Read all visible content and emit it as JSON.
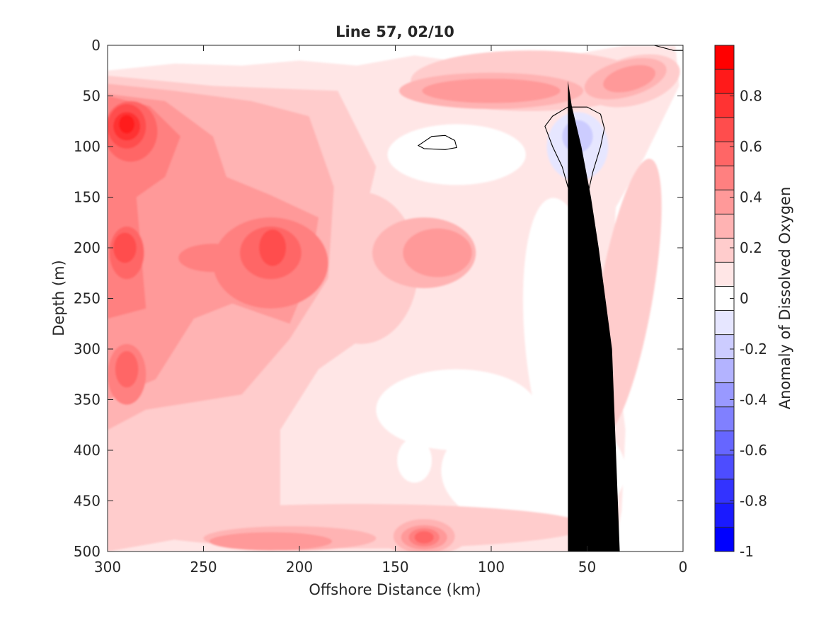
{
  "chart_data": {
    "type": "heatmap",
    "title": "Line 57, 02/10",
    "xlabel": "Offshore Distance (km)",
    "ylabel": "Depth (m)",
    "colorbar_label": "Anomaly of Dissolved Oxygen",
    "xlim": [
      300,
      0
    ],
    "ylim": [
      500,
      0
    ],
    "x_reversed": true,
    "y_reversed": true,
    "x_ticks": [
      300,
      250,
      200,
      150,
      100,
      50,
      0
    ],
    "y_ticks": [
      0,
      50,
      100,
      150,
      200,
      250,
      300,
      350,
      400,
      450,
      500
    ],
    "colorbar": {
      "range": [
        -1,
        1
      ],
      "step": 0.1,
      "ticks": [
        -1,
        -0.8,
        -0.6,
        -0.4,
        -0.2,
        0,
        0.2,
        0.4,
        0.6,
        0.8
      ],
      "tick_labels": [
        "-1",
        "-0.8",
        "-0.6",
        "-0.4",
        "-0.2",
        "0",
        "0.2",
        "0.4",
        "0.6",
        "0.8"
      ],
      "colors": [
        "#0000ff",
        "#1a1aff",
        "#3333ff",
        "#4d4dff",
        "#6666ff",
        "#8080ff",
        "#9999ff",
        "#b3b3ff",
        "#ccccff",
        "#e6e6ff",
        "#ffffff",
        "#ffe6e6",
        "#ffcccc",
        "#ffb3b3",
        "#ff9999",
        "#ff8080",
        "#ff6666",
        "#ff4d4d",
        "#ff3333",
        "#ff1a1a",
        "#ff0000"
      ]
    },
    "anomaly_features": [
      {
        "x_km": 290,
        "depth_m": 80,
        "value": 0.88
      },
      {
        "x_km": 290,
        "depth_m": 200,
        "value": 0.72
      },
      {
        "x_km": 215,
        "depth_m": 200,
        "value": 0.72
      },
      {
        "x_km": 290,
        "depth_m": 320,
        "value": 0.55
      },
      {
        "x_km": 250,
        "depth_m": 120,
        "value": 0.45
      },
      {
        "x_km": 135,
        "depth_m": 205,
        "value": 0.38
      },
      {
        "x_km": 135,
        "depth_m": 485,
        "value": 0.62
      },
      {
        "x_km": 205,
        "depth_m": 485,
        "value": 0.42
      },
      {
        "x_km": 90,
        "depth_m": 40,
        "value": 0.38
      },
      {
        "x_km": 30,
        "depth_m": 30,
        "value": 0.38
      },
      {
        "x_km": 55,
        "depth_m": 95,
        "value": -0.25
      },
      {
        "x_km": 125,
        "depth_m": 100,
        "value": -0.02
      },
      {
        "x_km": 55,
        "depth_m": 330,
        "value": -0.02
      }
    ],
    "bathymetry": [
      [
        33,
        500
      ],
      [
        36,
        350
      ],
      [
        37,
        300
      ],
      [
        44,
        200
      ],
      [
        48,
        150
      ],
      [
        53,
        100
      ],
      [
        58,
        60
      ],
      [
        60,
        35
      ],
      [
        60,
        500
      ]
    ]
  }
}
